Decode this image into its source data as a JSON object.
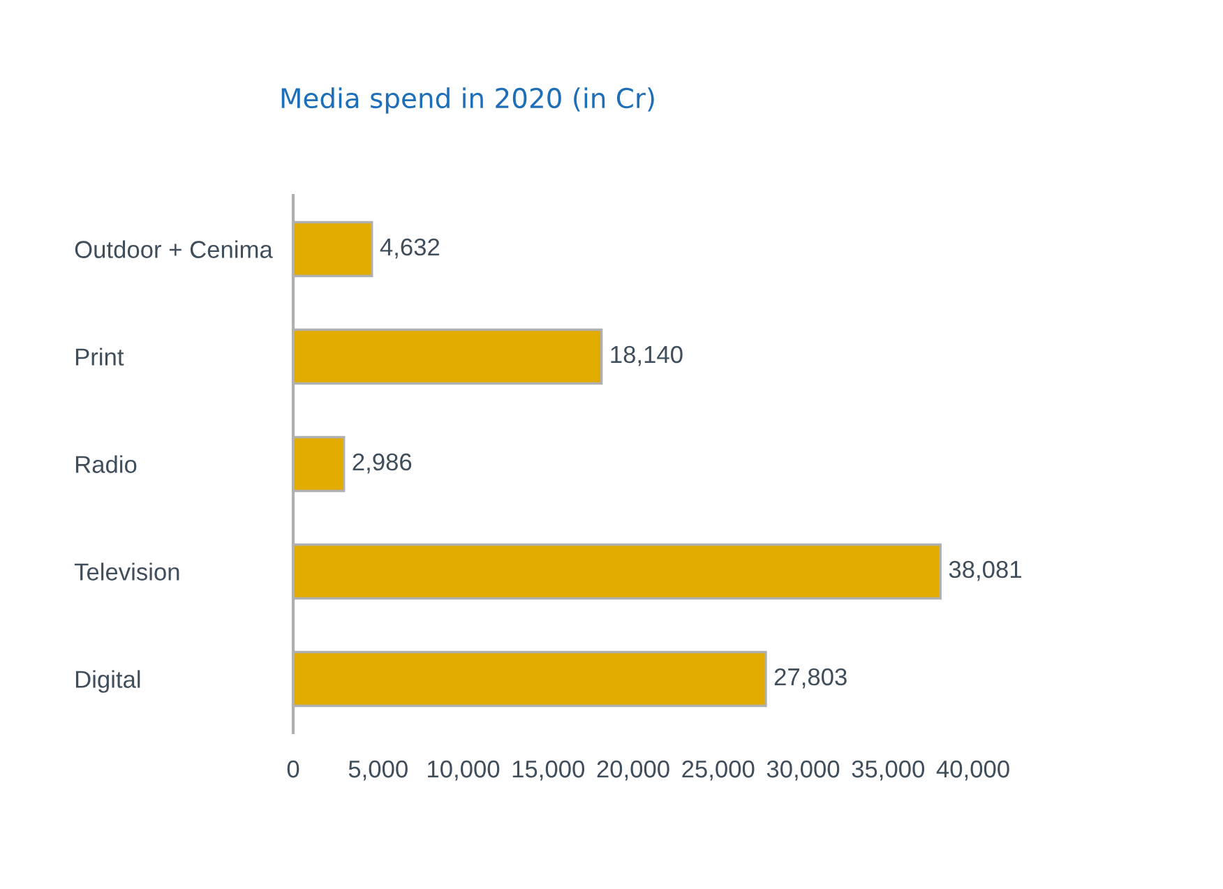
{
  "chart_data": {
    "type": "bar",
    "orientation": "horizontal",
    "title": "Media spend in 2020 (in Cr)",
    "categories": [
      "Outdoor + Cenima",
      "Print",
      "Radio",
      "Television",
      "Digital"
    ],
    "values": [
      4632,
      18140,
      2986,
      38081,
      27803
    ],
    "value_labels": [
      "4,632",
      "18,140",
      "2,986",
      "38,081",
      "27,803"
    ],
    "color": "#e2ab00",
    "xlim": [
      0,
      40000
    ],
    "xticks": [
      0,
      {
        "value": 5000,
        "label": "5,000"
      },
      {
        "value": 10000,
        "label": "10,000"
      },
      {
        "value": 15000,
        "label": "15,000"
      },
      {
        "value": 20000,
        "label": "20,000"
      },
      {
        "value": 25000,
        "label": "25,000"
      },
      {
        "value": 30000,
        "label": "30,000"
      },
      {
        "value": 35000,
        "label": "35,000"
      },
      {
        "value": 40000,
        "label": "40,000"
      }
    ],
    "grid": false,
    "legend": false
  }
}
